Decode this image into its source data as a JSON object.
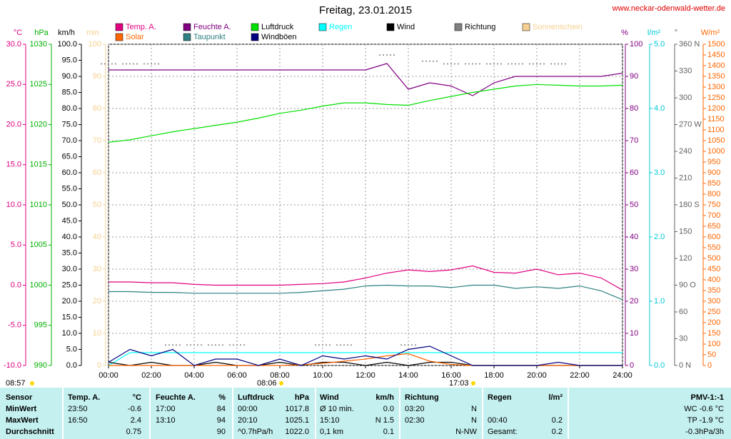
{
  "chart_data": {
    "type": "line",
    "title": "Freitag, 23.01.2015",
    "subtitle": "www.neckar-odenwald-wetter.de",
    "annotations": [
      "08:57",
      "08:06",
      "17:03"
    ],
    "grid": true,
    "x": [
      0,
      1,
      2,
      3,
      4,
      5,
      6,
      7,
      8,
      9,
      10,
      11,
      12,
      13,
      14,
      15,
      16,
      17,
      18,
      19,
      20,
      21,
      22,
      23,
      24
    ],
    "xlim": [
      0,
      24
    ],
    "xticks": [
      {
        "value": 0,
        "label": "00:00"
      },
      {
        "value": 2,
        "label": "02:00"
      },
      {
        "value": 4,
        "label": "04:00"
      },
      {
        "value": 6,
        "label": "06:00"
      },
      {
        "value": 8,
        "label": "08:00"
      },
      {
        "value": 10,
        "label": "10:00"
      },
      {
        "value": 12,
        "label": "12:00"
      },
      {
        "value": 14,
        "label": "14:00"
      },
      {
        "value": 16,
        "label": "16:00"
      },
      {
        "value": 18,
        "label": "18:00"
      },
      {
        "value": 20,
        "label": "20:00"
      },
      {
        "value": 22,
        "label": "22:00"
      },
      {
        "value": 24,
        "label": "24:00"
      }
    ],
    "axes": {
      "temp": {
        "label": "°C",
        "color": "#e0007f",
        "lim": [
          -10,
          30
        ],
        "ticks": [
          {
            "value": 30,
            "label": "30.0"
          },
          {
            "value": 25,
            "label": "25.0"
          },
          {
            "value": 20,
            "label": "20.0"
          },
          {
            "value": 15,
            "label": "15.0"
          },
          {
            "value": 10,
            "label": "10.0"
          },
          {
            "value": 5,
            "label": "5.0"
          },
          {
            "value": 0,
            "label": "0.0"
          },
          {
            "value": -5,
            "label": "-5.0"
          },
          {
            "value": -10,
            "label": "-10.0"
          }
        ]
      },
      "press": {
        "label": "hPa",
        "color": "#00b000",
        "lim": [
          990,
          1030
        ],
        "ticks": [
          1030,
          1025,
          1020,
          1015,
          1010,
          1005,
          1000,
          995,
          990
        ]
      },
      "wind": {
        "label": "km/h",
        "color": "#000000",
        "lim": [
          0,
          100
        ],
        "ticks": [
          {
            "value": 100,
            "label": "100.0"
          },
          {
            "value": 95,
            "label": "95.0"
          },
          {
            "value": 90,
            "label": "90.0"
          },
          {
            "value": 85,
            "label": "85.0"
          },
          {
            "value": 80,
            "label": "80.0"
          },
          {
            "value": 75,
            "label": "75.0"
          },
          {
            "value": 70,
            "label": "70.0"
          },
          {
            "value": 65,
            "label": "65.0"
          },
          {
            "value": 60,
            "label": "60.0"
          },
          {
            "value": 55,
            "label": "55.0"
          },
          {
            "value": 50,
            "label": "50.0"
          },
          {
            "value": 45,
            "label": "45.0"
          },
          {
            "value": 40,
            "label": "40.0"
          },
          {
            "value": 35,
            "label": "35.0"
          },
          {
            "value": 30,
            "label": "30.0"
          },
          {
            "value": 25,
            "label": "25.0"
          },
          {
            "value": 20,
            "label": "20.0"
          },
          {
            "value": 15,
            "label": "15.0"
          },
          {
            "value": 10,
            "label": "10.0"
          },
          {
            "value": 5,
            "label": "5.0"
          },
          {
            "value": 0,
            "label": "0.0"
          }
        ]
      },
      "min": {
        "label": "min",
        "color": "#f5d090",
        "lim": [
          0,
          100
        ],
        "ticks": [
          100,
          90,
          80,
          70,
          60,
          50,
          40,
          30,
          20,
          10,
          0
        ]
      },
      "hum": {
        "label": "%",
        "color": "#800080",
        "lim": [
          0,
          100
        ],
        "ticks": [
          100,
          90,
          80,
          70,
          60,
          50,
          40,
          30,
          20,
          10,
          0
        ]
      },
      "rain": {
        "label": "l/m²",
        "color": "#00c8d8",
        "lim": [
          0,
          5
        ],
        "ticks": [
          {
            "value": 5,
            "label": "5.0"
          },
          {
            "value": 4,
            "label": "4.0"
          },
          {
            "value": 3,
            "label": "3.0"
          },
          {
            "value": 2,
            "label": "2.0"
          },
          {
            "value": 1,
            "label": "1.0"
          },
          {
            "value": 0,
            "label": "0.0"
          }
        ]
      },
      "dir": {
        "label": "°",
        "color": "#606060",
        "lim": [
          0,
          360
        ],
        "ticks": [
          {
            "value": 360,
            "label": "360 N"
          },
          330,
          300,
          {
            "value": 270,
            "label": "270 W"
          },
          240,
          210,
          {
            "value": 180,
            "label": "180 S"
          },
          150,
          120,
          {
            "value": 90,
            "label": "90 O"
          },
          60,
          30,
          {
            "value": 0,
            "label": "0 N"
          }
        ]
      },
      "solar": {
        "label": "W/m²",
        "color": "#ff6600",
        "lim": [
          0,
          1500
        ],
        "ticks": [
          1500,
          1450,
          1400,
          1350,
          1300,
          1250,
          1200,
          1150,
          1100,
          1050,
          1000,
          950,
          900,
          850,
          800,
          750,
          700,
          650,
          600,
          550,
          500,
          450,
          400,
          350,
          300,
          250,
          200,
          150,
          100,
          50,
          0
        ]
      }
    },
    "series": [
      {
        "name": "Temp. A.",
        "color": "#e0007f",
        "axis": "temp",
        "values": [
          0.4,
          0.4,
          0.3,
          0.3,
          0.1,
          0.0,
          0.0,
          0.0,
          0.0,
          0.1,
          0.2,
          0.4,
          0.9,
          1.5,
          1.9,
          1.7,
          1.9,
          2.4,
          1.6,
          1.5,
          2.0,
          1.3,
          1.5,
          0.9,
          -0.6
        ]
      },
      {
        "name": "Feuchte A.",
        "color": "#800080",
        "axis": "hum",
        "values": [
          92,
          92,
          92,
          92,
          92,
          92,
          92,
          92,
          92,
          92,
          92,
          92,
          92,
          94,
          86,
          88,
          87,
          84,
          88,
          90,
          90,
          90,
          90,
          90,
          91
        ]
      },
      {
        "name": "Luftdruck",
        "color": "#00e000",
        "axis": "press",
        "values": [
          1017.8,
          1018.1,
          1018.6,
          1019.1,
          1019.5,
          1019.9,
          1020.3,
          1020.8,
          1021.4,
          1021.8,
          1022.3,
          1022.7,
          1022.7,
          1022.5,
          1022.4,
          1023.0,
          1023.5,
          1024.0,
          1024.4,
          1024.8,
          1025.0,
          1024.9,
          1024.8,
          1024.8,
          1024.9
        ]
      },
      {
        "name": "Regen",
        "color": "#00ffff",
        "axis": "rain",
        "values": [
          0,
          0.2,
          0.2,
          0.2,
          0.2,
          0.2,
          0.2,
          0.2,
          0.2,
          0.2,
          0.2,
          0.2,
          0.2,
          0.2,
          0.2,
          0.2,
          0.2,
          0.2,
          0.2,
          0.2,
          0.2,
          0.2,
          0.2,
          0.2,
          0.2
        ]
      },
      {
        "name": "Wind",
        "color": "#000000",
        "axis": "wind",
        "values": [
          1,
          0,
          1,
          0,
          0,
          1,
          0,
          0,
          1,
          0,
          1,
          1,
          0,
          1,
          0,
          1,
          1,
          0,
          0,
          0,
          0,
          0,
          0,
          0,
          0
        ]
      },
      {
        "name": "Richtung",
        "color": "#808080",
        "axis": "dir",
        "dots": true,
        "values": [
          338,
          338,
          338,
          23,
          23,
          23,
          23,
          null,
          null,
          null,
          23,
          23,
          null,
          348,
          23,
          341,
          338,
          338,
          338,
          338,
          338,
          338,
          null,
          null,
          null
        ]
      },
      {
        "name": "Sonnenschein",
        "color": "#f5d090",
        "axis": "min"
      },
      {
        "name": "Solar",
        "color": "#ff6600",
        "axis": "solar",
        "values": [
          0,
          0,
          0,
          0,
          0,
          0,
          0,
          0,
          0,
          3,
          10,
          20,
          30,
          45,
          55,
          20,
          5,
          0,
          0,
          0,
          0,
          0,
          0,
          0,
          0
        ]
      },
      {
        "name": "Taupunkt",
        "color": "#2f8080",
        "axis": "temp",
        "values": [
          -0.8,
          -0.8,
          -0.9,
          -0.9,
          -1.0,
          -1.0,
          -1.0,
          -1.0,
          -1.0,
          -0.9,
          -0.7,
          -0.5,
          -0.1,
          0.0,
          -0.1,
          -0.1,
          -0.3,
          0.0,
          0.0,
          -0.4,
          -0.2,
          -0.4,
          -0.1,
          -0.7,
          -1.8
        ]
      },
      {
        "name": "Windböen",
        "color": "#000080",
        "axis": "wind",
        "values": [
          1,
          5,
          3,
          5,
          0,
          2,
          2,
          0,
          2,
          0,
          3,
          2,
          3,
          2,
          5,
          6,
          3,
          0,
          0,
          0,
          0,
          1,
          0,
          0,
          0
        ]
      }
    ]
  },
  "table": {
    "header": [
      "Sensor",
      "Temp. A.",
      "°C",
      "Feuchte A.",
      "%",
      "Luftdruck",
      "hPa",
      "Wind",
      "km/h",
      "Richtung",
      null,
      "Regen",
      "l/m²",
      "PMV-1:-1"
    ],
    "rows": [
      [
        "MinWert",
        "23:50",
        "-0.6",
        "17:00",
        "84",
        "00:00",
        "1017.8",
        "Ø 10 min.",
        "0.0",
        "03:20",
        "N",
        null,
        null,
        "WC -0.6 °C"
      ],
      [
        "MaxWert",
        "16:50",
        "2.4",
        "13:10",
        "94",
        "20:10",
        "1025.1",
        "15:10",
        "N 1.5",
        "02:30",
        "N",
        "00:40",
        "0.2",
        "TP -1.9 °C"
      ],
      [
        "Durchschnitt",
        null,
        "0.75",
        null,
        "90",
        "^0.7hPa/h",
        "1022.0",
        "0,1 km",
        "0.1",
        null,
        "N-NW",
        "Gesamt:",
        "0.2",
        "-0.3hPa/3h"
      ]
    ]
  }
}
